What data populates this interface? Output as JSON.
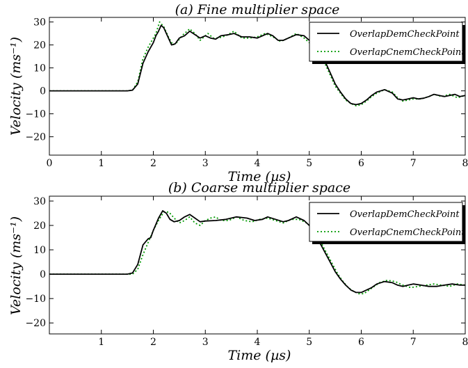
{
  "chart_data": [
    {
      "type": "line",
      "title": "(a) Fine multiplier space",
      "xlabel": "Time (µs)",
      "ylabel": "Velocity (ms⁻¹)",
      "xlim": [
        0,
        8
      ],
      "ylim": [
        -28,
        32
      ],
      "xticks": [
        "0",
        "1",
        "2",
        "3",
        "4",
        "5",
        "6",
        "7",
        "8"
      ],
      "yticks": [
        "30",
        "20",
        "10",
        "0",
        "−10",
        "−20"
      ],
      "grid": false,
      "legend": "top-right",
      "series": [
        {
          "name": "OverlapDemCheckPoint",
          "style": "solid",
          "color": "#000000",
          "points": [
            [
              0,
              0
            ],
            [
              1.5,
              0
            ],
            [
              1.6,
              0.3
            ],
            [
              1.7,
              3
            ],
            [
              1.8,
              12
            ],
            [
              1.9,
              17
            ],
            [
              2.0,
              21
            ],
            [
              2.05,
              24
            ],
            [
              2.1,
              26
            ],
            [
              2.15,
              28.5
            ],
            [
              2.2,
              27.5
            ],
            [
              2.27,
              24
            ],
            [
              2.35,
              20
            ],
            [
              2.42,
              20.5
            ],
            [
              2.5,
              23
            ],
            [
              2.6,
              24
            ],
            [
              2.7,
              26
            ],
            [
              2.8,
              24.5
            ],
            [
              2.9,
              23
            ],
            [
              3.0,
              24
            ],
            [
              3.1,
              23
            ],
            [
              3.2,
              22.5
            ],
            [
              3.3,
              24
            ],
            [
              3.45,
              24.5
            ],
            [
              3.55,
              25
            ],
            [
              3.7,
              23.5
            ],
            [
              3.85,
              23.5
            ],
            [
              4.0,
              23
            ],
            [
              4.1,
              24
            ],
            [
              4.2,
              25
            ],
            [
              4.3,
              24
            ],
            [
              4.4,
              22
            ],
            [
              4.5,
              22
            ],
            [
              4.6,
              23
            ],
            [
              4.75,
              24.5
            ],
            [
              4.9,
              24
            ],
            [
              5.0,
              22
            ],
            [
              5.1,
              20
            ],
            [
              5.2,
              17
            ],
            [
              5.3,
              13
            ],
            [
              5.4,
              8
            ],
            [
              5.5,
              3
            ],
            [
              5.6,
              -0.5
            ],
            [
              5.7,
              -3.5
            ],
            [
              5.8,
              -5.5
            ],
            [
              5.9,
              -6
            ],
            [
              6.0,
              -5.5
            ],
            [
              6.1,
              -4
            ],
            [
              6.2,
              -2
            ],
            [
              6.3,
              -0.5
            ],
            [
              6.45,
              0.5
            ],
            [
              6.6,
              -1
            ],
            [
              6.7,
              -3.5
            ],
            [
              6.8,
              -4
            ],
            [
              6.9,
              -3.5
            ],
            [
              7.0,
              -3
            ],
            [
              7.1,
              -3.5
            ],
            [
              7.2,
              -3.2
            ],
            [
              7.3,
              -2.5
            ],
            [
              7.4,
              -1.5
            ],
            [
              7.5,
              -2
            ],
            [
              7.6,
              -2.5
            ],
            [
              7.7,
              -2
            ],
            [
              7.8,
              -1.5
            ],
            [
              7.9,
              -2.5
            ],
            [
              8.0,
              -2
            ]
          ]
        },
        {
          "name": "OverlapCnemCheckPoint",
          "style": "dotted",
          "color": "#009900",
          "points": [
            [
              0,
              0
            ],
            [
              1.5,
              0
            ],
            [
              1.6,
              0.3
            ],
            [
              1.7,
              4
            ],
            [
              1.8,
              14
            ],
            [
              1.9,
              19
            ],
            [
              2.0,
              23
            ],
            [
              2.05,
              25
            ],
            [
              2.12,
              30
            ],
            [
              2.2,
              28
            ],
            [
              2.3,
              23
            ],
            [
              2.38,
              20
            ],
            [
              2.45,
              21
            ],
            [
              2.55,
              24
            ],
            [
              2.7,
              27
            ],
            [
              2.8,
              25
            ],
            [
              2.9,
              22
            ],
            [
              3.05,
              25
            ],
            [
              3.15,
              23
            ],
            [
              3.25,
              23
            ],
            [
              3.4,
              24
            ],
            [
              3.55,
              26
            ],
            [
              3.7,
              23
            ],
            [
              3.85,
              23
            ],
            [
              4.0,
              23.5
            ],
            [
              4.15,
              25
            ],
            [
              4.3,
              23.5
            ],
            [
              4.45,
              21.5
            ],
            [
              4.6,
              23
            ],
            [
              4.75,
              25
            ],
            [
              4.9,
              23
            ],
            [
              5.0,
              21
            ],
            [
              5.1,
              19
            ],
            [
              5.2,
              16
            ],
            [
              5.3,
              12
            ],
            [
              5.4,
              7
            ],
            [
              5.5,
              2
            ],
            [
              5.6,
              -1
            ],
            [
              5.7,
              -4
            ],
            [
              5.8,
              -5.5
            ],
            [
              5.9,
              -6.5
            ],
            [
              6.0,
              -6
            ],
            [
              6.1,
              -4.5
            ],
            [
              6.2,
              -2.5
            ],
            [
              6.3,
              -1
            ],
            [
              6.45,
              0.5
            ],
            [
              6.6,
              -0.5
            ],
            [
              6.7,
              -3
            ],
            [
              6.8,
              -4.5
            ],
            [
              6.9,
              -4
            ],
            [
              7.0,
              -3.5
            ],
            [
              7.15,
              -3.5
            ],
            [
              7.3,
              -2.5
            ],
            [
              7.4,
              -1.5
            ],
            [
              7.55,
              -2.5
            ],
            [
              7.7,
              -1.5
            ],
            [
              7.85,
              -3
            ],
            [
              8.0,
              -2
            ]
          ]
        }
      ]
    },
    {
      "type": "line",
      "title": "(b) Coarse multiplier space",
      "xlabel": "Time (µs)",
      "ylabel": "Velocity (ms⁻¹)",
      "xlim": [
        0,
        8
      ],
      "ylim": [
        -24.5,
        32
      ],
      "xticks": [
        "",
        "1",
        "2",
        "3",
        "4",
        "5",
        "6",
        "7",
        "8"
      ],
      "yticks": [
        "30",
        "20",
        "10",
        "0",
        "−10",
        "−20"
      ],
      "grid": false,
      "legend": "top-right",
      "series": [
        {
          "name": "OverlapDemCheckPoint",
          "style": "solid",
          "color": "#000000",
          "points": [
            [
              0,
              0
            ],
            [
              1.5,
              0
            ],
            [
              1.6,
              0.5
            ],
            [
              1.7,
              4
            ],
            [
              1.8,
              12
            ],
            [
              1.9,
              14.5
            ],
            [
              1.95,
              15
            ],
            [
              2.0,
              18
            ],
            [
              2.1,
              23
            ],
            [
              2.18,
              26
            ],
            [
              2.25,
              25
            ],
            [
              2.32,
              22.5
            ],
            [
              2.4,
              21.5
            ],
            [
              2.5,
              22
            ],
            [
              2.6,
              23.5
            ],
            [
              2.7,
              24.5
            ],
            [
              2.8,
              23
            ],
            [
              2.9,
              21.5
            ],
            [
              3.0,
              21.8
            ],
            [
              3.2,
              22
            ],
            [
              3.4,
              22.5
            ],
            [
              3.6,
              23.5
            ],
            [
              3.8,
              23
            ],
            [
              3.95,
              22
            ],
            [
              4.1,
              22.5
            ],
            [
              4.2,
              23.5
            ],
            [
              4.35,
              22.5
            ],
            [
              4.5,
              21.5
            ],
            [
              4.6,
              22
            ],
            [
              4.75,
              23.5
            ],
            [
              4.9,
              22
            ],
            [
              5.0,
              20
            ],
            [
              5.1,
              17
            ],
            [
              5.2,
              13
            ],
            [
              5.3,
              9
            ],
            [
              5.4,
              5
            ],
            [
              5.5,
              1
            ],
            [
              5.6,
              -2
            ],
            [
              5.7,
              -4.5
            ],
            [
              5.8,
              -6.5
            ],
            [
              5.9,
              -7.5
            ],
            [
              6.0,
              -7.5
            ],
            [
              6.1,
              -6.5
            ],
            [
              6.2,
              -5.5
            ],
            [
              6.3,
              -4
            ],
            [
              6.45,
              -3
            ],
            [
              6.6,
              -3.5
            ],
            [
              6.7,
              -4.5
            ],
            [
              6.8,
              -5
            ],
            [
              6.9,
              -4.5
            ],
            [
              7.0,
              -4
            ],
            [
              7.15,
              -4.5
            ],
            [
              7.3,
              -5
            ],
            [
              7.45,
              -5
            ],
            [
              7.6,
              -4.5
            ],
            [
              7.75,
              -4
            ],
            [
              7.9,
              -4.5
            ],
            [
              8.0,
              -4.5
            ]
          ]
        },
        {
          "name": "OverlapCnemCheckPoint",
          "style": "dotted",
          "color": "#009900",
          "points": [
            [
              0,
              0
            ],
            [
              1.6,
              0
            ],
            [
              1.7,
              2
            ],
            [
              1.8,
              8
            ],
            [
              1.9,
              13
            ],
            [
              2.0,
              18
            ],
            [
              2.1,
              22
            ],
            [
              2.2,
              25.5
            ],
            [
              2.3,
              25.5
            ],
            [
              2.4,
              23
            ],
            [
              2.5,
              21
            ],
            [
              2.6,
              22
            ],
            [
              2.7,
              23.5
            ],
            [
              2.8,
              21
            ],
            [
              2.9,
              20
            ],
            [
              3.0,
              22
            ],
            [
              3.1,
              23
            ],
            [
              3.2,
              23.5
            ],
            [
              3.3,
              22
            ],
            [
              3.45,
              22
            ],
            [
              3.6,
              23.5
            ],
            [
              3.75,
              22
            ],
            [
              3.9,
              21.5
            ],
            [
              4.05,
              22.5
            ],
            [
              4.2,
              23
            ],
            [
              4.35,
              22
            ],
            [
              4.5,
              21
            ],
            [
              4.65,
              22.5
            ],
            [
              4.8,
              22.5
            ],
            [
              4.95,
              21
            ],
            [
              5.05,
              19
            ],
            [
              5.15,
              16
            ],
            [
              5.25,
              12
            ],
            [
              5.35,
              8
            ],
            [
              5.45,
              4
            ],
            [
              5.55,
              0
            ],
            [
              5.65,
              -3
            ],
            [
              5.75,
              -5.5
            ],
            [
              5.85,
              -7
            ],
            [
              5.95,
              -8
            ],
            [
              6.05,
              -8
            ],
            [
              6.15,
              -6.5
            ],
            [
              6.25,
              -5
            ],
            [
              6.35,
              -3.5
            ],
            [
              6.5,
              -2.5
            ],
            [
              6.65,
              -3
            ],
            [
              6.8,
              -4.5
            ],
            [
              6.95,
              -5.5
            ],
            [
              7.1,
              -5
            ],
            [
              7.25,
              -4.5
            ],
            [
              7.4,
              -4
            ],
            [
              7.55,
              -4.5
            ],
            [
              7.7,
              -5
            ],
            [
              7.85,
              -4
            ],
            [
              8.0,
              -4.5
            ]
          ]
        }
      ]
    }
  ]
}
